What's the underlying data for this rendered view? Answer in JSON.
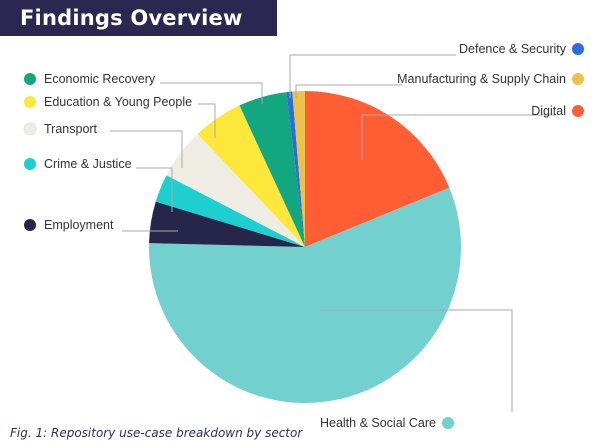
{
  "title": "Findings Overview",
  "caption": "Fig. 1: Repository use-case breakdown by sector",
  "chart_data": {
    "type": "pie",
    "title": "Findings Overview",
    "start_angle_deg": 0,
    "direction": "clockwise",
    "slices": [
      {
        "label": "Digital",
        "value": 18.8,
        "color": "#ff5e35"
      },
      {
        "label": "Health & Social Care",
        "value": 56.6,
        "color": "#72d1cf"
      },
      {
        "label": "Employment",
        "value": 4.3,
        "color": "#26264a"
      },
      {
        "label": "Crime & Justice",
        "value": 2.9,
        "color": "#1ecfcf"
      },
      {
        "label": "Transport",
        "value": 5.3,
        "color": "#efede3"
      },
      {
        "label": "Education & Young People",
        "value": 5.2,
        "color": "#fde73a"
      },
      {
        "label": "Economic Recovery",
        "value": 5.0,
        "color": "#12a77e"
      },
      {
        "label": "Defence & Security",
        "value": 0.6,
        "color": "#2a6edd"
      },
      {
        "label": "Manufacturing & Supply Chain",
        "value": 1.3,
        "color": "#ecc24a"
      }
    ],
    "legend_placement": "around"
  }
}
